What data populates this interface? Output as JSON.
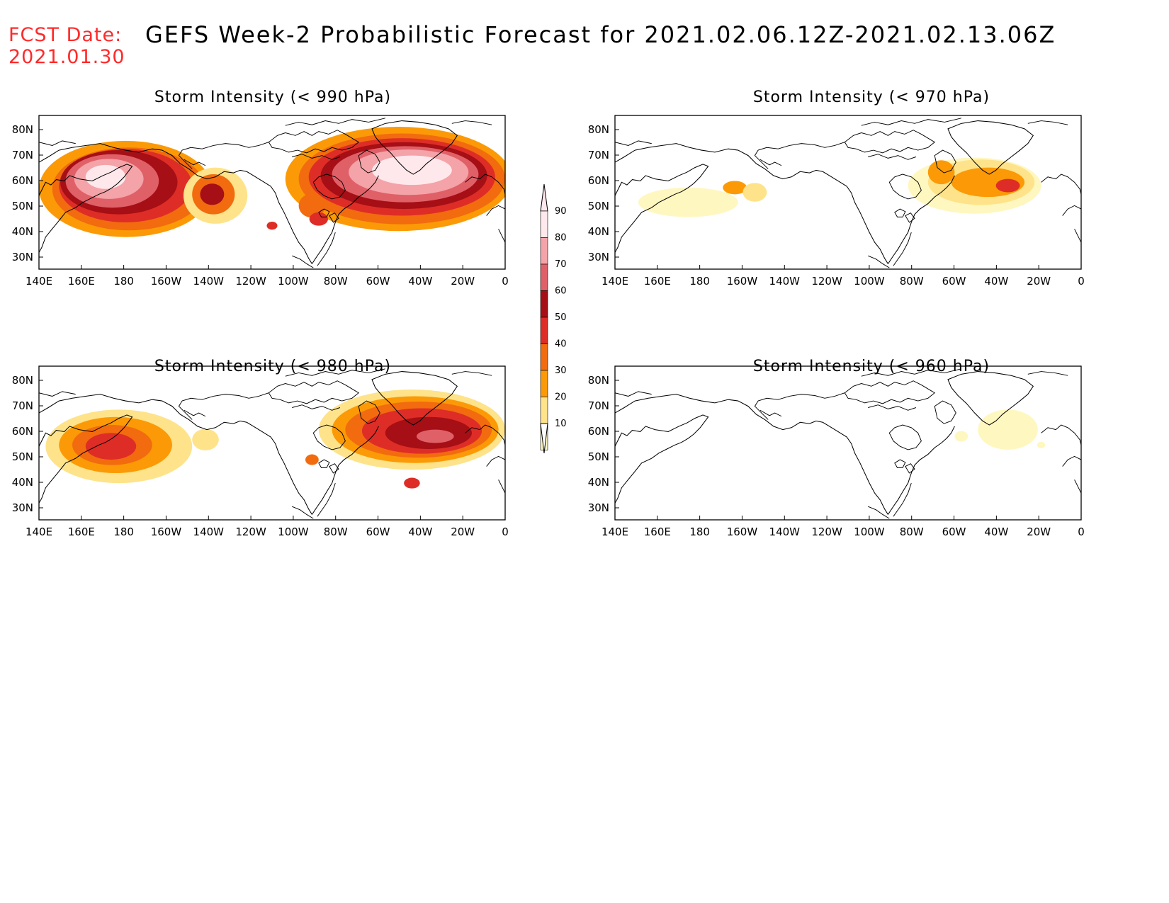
{
  "header": {
    "fcst_label": "FCST Date:",
    "fcst_date": "2021.01.30",
    "title": "GEFS Week-2 Probabilistic Forecast for 2021.02.06.12Z-2021.02.13.06Z"
  },
  "axes": {
    "lon_ticks": [
      "140E",
      "160E",
      "180",
      "160W",
      "140W",
      "120W",
      "100W",
      "80W",
      "60W",
      "40W",
      "20W",
      "0"
    ],
    "lat_ticks": [
      "80N",
      "70N",
      "60N",
      "50N",
      "40N",
      "30N"
    ]
  },
  "panels": [
    {
      "title": "Storm Intensity (< 990 hPa)",
      "level": "high"
    },
    {
      "title": "Storm Intensity (< 970 hPa)",
      "level": "low"
    },
    {
      "title": "Storm Intensity (< 980 hPa)",
      "level": "medium"
    },
    {
      "title": "Storm Intensity (< 960 hPa)",
      "level": "minimal"
    }
  ],
  "colorbar": {
    "labels": [
      "90",
      "80",
      "70",
      "60",
      "50",
      "40",
      "30",
      "20",
      "10"
    ],
    "colors": [
      "#ffe8ec",
      "#f4a3a8",
      "#e06068",
      "#a50f15",
      "#de2d26",
      "#f26b0f",
      "#fb9a06",
      "#fee38a",
      "#fff7c0"
    ]
  }
}
